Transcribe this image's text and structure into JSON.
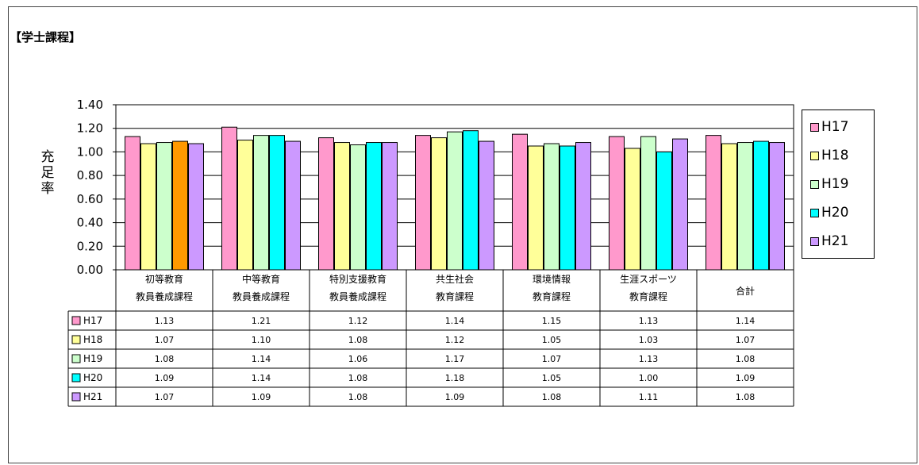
{
  "page": {
    "title": "【学士課程】"
  },
  "chart_data": {
    "type": "bar",
    "ylabel": "充足率",
    "ylim": [
      0,
      1.4
    ],
    "ytick_labels": [
      "0.00",
      "0.20",
      "0.40",
      "0.60",
      "0.80",
      "1.00",
      "1.20",
      "1.40"
    ],
    "categories": [
      [
        "初等教育",
        "教員養成課程"
      ],
      [
        "中等教育",
        "教員養成課程"
      ],
      [
        "特別支援教育",
        "教員養成課程"
      ],
      [
        "共生社会",
        "教育課程"
      ],
      [
        "環境情報",
        "教育課程"
      ],
      [
        "生涯スポーツ",
        "教育課程"
      ],
      [
        "合計"
      ]
    ],
    "series": [
      {
        "name": "H17",
        "color": "#FF99CC",
        "values": [
          1.13,
          1.21,
          1.12,
          1.14,
          1.15,
          1.13,
          1.14
        ],
        "labels": [
          "1.13",
          "1.21",
          "1.12",
          "1.14",
          "1.15",
          "1.13",
          "1.14"
        ]
      },
      {
        "name": "H18",
        "color": "#FFFF99",
        "values": [
          1.07,
          1.1,
          1.08,
          1.12,
          1.05,
          1.03,
          1.07
        ],
        "labels": [
          "1.07",
          "1.10",
          "1.08",
          "1.12",
          "1.05",
          "1.03",
          "1.07"
        ]
      },
      {
        "name": "H19",
        "color": "#CCFFCC",
        "values": [
          1.08,
          1.14,
          1.06,
          1.17,
          1.07,
          1.13,
          1.08
        ],
        "labels": [
          "1.08",
          "1.14",
          "1.06",
          "1.17",
          "1.07",
          "1.13",
          "1.08"
        ]
      },
      {
        "name": "H20",
        "color": "#00FFFF",
        "values": [
          1.09,
          1.14,
          1.08,
          1.18,
          1.05,
          1.0,
          1.09
        ],
        "labels": [
          "1.09",
          "1.14",
          "1.08",
          "1.18",
          "1.05",
          "1.00",
          "1.09"
        ]
      },
      {
        "name": "H21",
        "color": "#CC99FF",
        "values": [
          1.07,
          1.09,
          1.08,
          1.09,
          1.08,
          1.11,
          1.08
        ],
        "labels": [
          "1.07",
          "1.09",
          "1.08",
          "1.09",
          "1.08",
          "1.11",
          "1.08"
        ]
      }
    ],
    "highlight": {
      "series": 3,
      "category": 0,
      "color": "#FF9900"
    },
    "grid": true,
    "legend": "right"
  }
}
